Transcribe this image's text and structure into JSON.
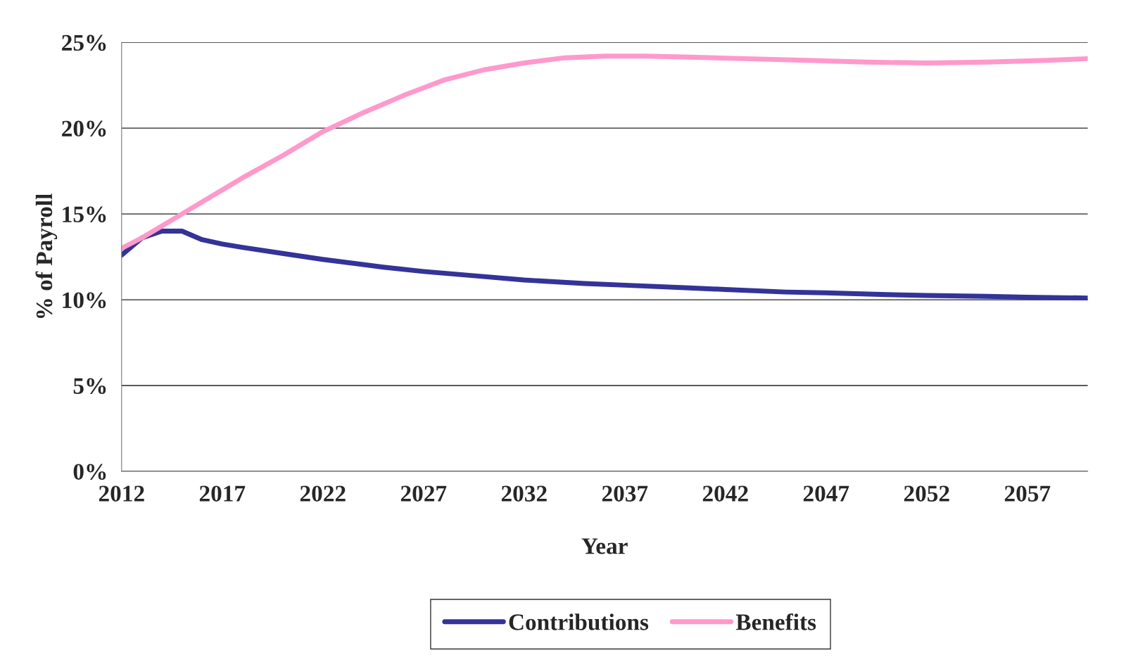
{
  "chart_data": {
    "type": "line",
    "xlabel": "Year",
    "ylabel": "% of Payroll",
    "xlim": [
      2012,
      2060
    ],
    "xticks": [
      2012,
      2017,
      2022,
      2027,
      2032,
      2037,
      2042,
      2047,
      2052,
      2057
    ],
    "ylim": [
      0,
      25
    ],
    "yticks": [
      {
        "value": 0,
        "label": "0%"
      },
      {
        "value": 5,
        "label": "5%"
      },
      {
        "value": 10,
        "label": "10%"
      },
      {
        "value": 15,
        "label": "15%"
      },
      {
        "value": 20,
        "label": "20%"
      },
      {
        "value": 25,
        "label": "25%"
      }
    ],
    "grid": "y",
    "legend": "bottom",
    "series": [
      {
        "name": "Contributions",
        "color": "#333399",
        "x": [
          2012,
          2013,
          2014,
          2015,
          2016,
          2017,
          2018,
          2020,
          2022,
          2025,
          2027,
          2030,
          2032,
          2035,
          2037,
          2040,
          2042,
          2045,
          2047,
          2050,
          2052,
          2055,
          2057,
          2060
        ],
        "values": [
          12.6,
          13.6,
          14.0,
          14.0,
          13.5,
          13.25,
          13.05,
          12.7,
          12.35,
          11.9,
          11.65,
          11.35,
          11.15,
          10.95,
          10.85,
          10.7,
          10.6,
          10.45,
          10.4,
          10.3,
          10.25,
          10.2,
          10.15,
          10.1
        ]
      },
      {
        "name": "Benefits",
        "color": "#ff99cc",
        "x": [
          2012,
          2013,
          2014,
          2015,
          2016,
          2017,
          2018,
          2020,
          2022,
          2024,
          2026,
          2028,
          2030,
          2032,
          2034,
          2036,
          2038,
          2040,
          2043,
          2046,
          2049,
          2052,
          2055,
          2058,
          2060
        ],
        "values": [
          13.0,
          13.6,
          14.3,
          15.0,
          15.7,
          16.4,
          17.1,
          18.4,
          19.8,
          20.9,
          21.9,
          22.8,
          23.4,
          23.8,
          24.1,
          24.2,
          24.2,
          24.15,
          24.05,
          23.95,
          23.85,
          23.8,
          23.85,
          23.95,
          24.05
        ]
      }
    ]
  }
}
